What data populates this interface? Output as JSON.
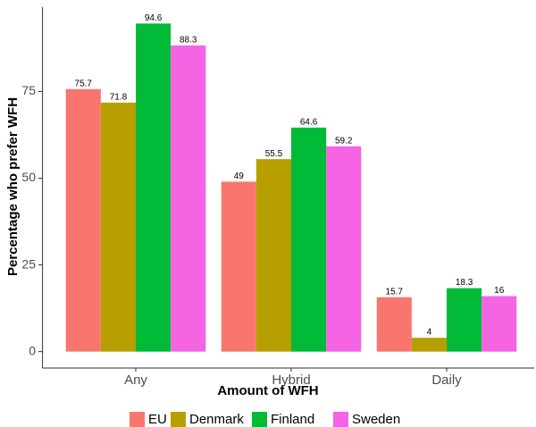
{
  "chart_data": {
    "type": "bar",
    "x_label": "Amount of WFH",
    "y_label": "Percentage who prefer WFH",
    "categories": [
      "Any",
      "Hybrid",
      "Daily"
    ],
    "series": [
      {
        "name": "EU",
        "color": "#F8766D",
        "values": [
          75.7,
          49,
          15.7
        ]
      },
      {
        "name": "Denmark",
        "color": "#B79F00",
        "values": [
          71.8,
          55.5,
          4
        ]
      },
      {
        "name": "Finland",
        "color": "#00BA38",
        "values": [
          94.6,
          64.6,
          18.3
        ]
      },
      {
        "name": "Sweden",
        "color": "#F564E3",
        "values": [
          88.3,
          59.2,
          16
        ]
      }
    ],
    "ylim": [
      -4.73,
      99.33
    ],
    "yticks": [
      0,
      25,
      50,
      75
    ],
    "legend": "bottom",
    "grid": false
  }
}
